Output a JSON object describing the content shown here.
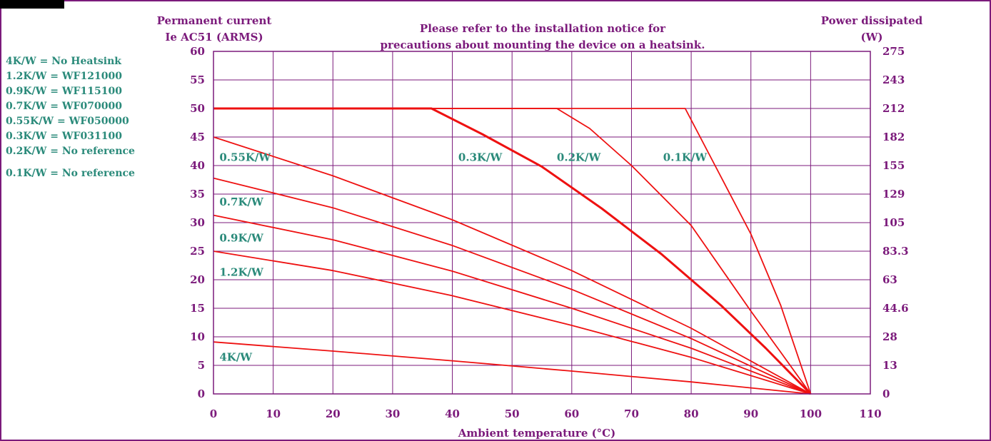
{
  "colors": {
    "frame": "#7b1a7b",
    "grid": "#7b1a7b",
    "axis_text": "#7b1a7b",
    "curve": "#ee1111",
    "legend_text": "#2a8a7a",
    "corner_block": "#000000"
  },
  "chart_data": {
    "type": "line",
    "title": "Please refer to the installation notice for precautions about mounting the device on a heatsink.",
    "title_lines": [
      "Please refer to the installation notice for",
      "precautions about mounting the device on a heatsink."
    ],
    "xlabel": "Ambient temperature (°C)",
    "ylabel_left_lines": [
      "Permanent current",
      "Ie AC51 (ARMS)"
    ],
    "ylabel_right_lines": [
      "Power dissipated",
      "(W)"
    ],
    "xlim": [
      0,
      110
    ],
    "ylim": [
      0,
      60
    ],
    "grid": true,
    "x_ticks": [
      0,
      10,
      20,
      30,
      40,
      50,
      60,
      70,
      80,
      90,
      100,
      110
    ],
    "y_ticks_left": [
      0,
      5,
      10,
      15,
      20,
      25,
      30,
      35,
      40,
      45,
      50,
      55,
      60
    ],
    "y_ticks_right": [
      "0",
      "13",
      "28",
      "44.6",
      "63",
      "83.3",
      "105",
      "129",
      "155",
      "182",
      "212",
      "243",
      "275"
    ],
    "legend_lines": [
      "4K/W = No Heatsink",
      "1.2K/W = WF121000",
      "0.9K/W = WF115100",
      "0.7K/W = WF070000",
      "0.55K/W = WF050000",
      "0.3K/W = WF031100",
      "0.2K/W = No reference",
      "0.1K/W = No reference"
    ],
    "series": [
      {
        "name": "4K/W",
        "label_at": [
          1,
          5.8
        ],
        "points": [
          [
            0,
            9.1
          ],
          [
            20,
            7.5
          ],
          [
            40,
            5.8
          ],
          [
            60,
            4.0
          ],
          [
            80,
            2.1
          ],
          [
            100,
            0
          ]
        ]
      },
      {
        "name": "1.2K/W",
        "label_at": [
          1,
          20.7
        ],
        "points": [
          [
            0,
            25.0
          ],
          [
            20,
            21.6
          ],
          [
            40,
            17.2
          ],
          [
            60,
            12.0
          ],
          [
            80,
            6.4
          ],
          [
            100,
            0
          ]
        ]
      },
      {
        "name": "0.9K/W",
        "label_at": [
          1,
          26.7
        ],
        "points": [
          [
            0,
            31.3
          ],
          [
            20,
            27.0
          ],
          [
            40,
            21.5
          ],
          [
            60,
            15.0
          ],
          [
            80,
            8.0
          ],
          [
            100,
            0
          ]
        ]
      },
      {
        "name": "0.7K/W",
        "label_at": [
          1,
          33.0
        ],
        "points": [
          [
            0,
            37.8
          ],
          [
            20,
            32.6
          ],
          [
            40,
            26.0
          ],
          [
            60,
            18.3
          ],
          [
            80,
            9.7
          ],
          [
            100,
            0
          ]
        ]
      },
      {
        "name": "0.55K/W",
        "label_at": [
          1,
          40.8
        ],
        "points": [
          [
            0,
            45.0
          ],
          [
            20,
            38.2
          ],
          [
            40,
            30.5
          ],
          [
            60,
            21.6
          ],
          [
            80,
            11.5
          ],
          [
            100,
            0
          ]
        ]
      },
      {
        "name": "0.3K/W",
        "label_at": [
          41,
          40.8
        ],
        "bold": true,
        "points": [
          [
            0,
            50
          ],
          [
            36.5,
            50
          ],
          [
            45,
            45.5
          ],
          [
            55,
            39.8
          ],
          [
            65,
            32.5
          ],
          [
            75,
            24.5
          ],
          [
            85,
            15.5
          ],
          [
            92.5,
            8.0
          ],
          [
            100,
            0
          ]
        ]
      },
      {
        "name": "0.2K/W",
        "label_at": [
          57.5,
          40.8
        ],
        "points": [
          [
            0,
            50
          ],
          [
            57.5,
            50
          ],
          [
            63,
            46.5
          ],
          [
            70,
            40.0
          ],
          [
            80,
            29.5
          ],
          [
            90,
            14.5
          ],
          [
            95,
            7.3
          ],
          [
            100,
            0
          ]
        ]
      },
      {
        "name": "0.1K/W",
        "label_at": [
          75.3,
          40.8
        ],
        "points": [
          [
            0,
            50
          ],
          [
            79,
            50
          ],
          [
            85,
            38.0
          ],
          [
            90,
            28.0
          ],
          [
            95,
            15.5
          ],
          [
            100,
            0
          ]
        ]
      }
    ]
  }
}
